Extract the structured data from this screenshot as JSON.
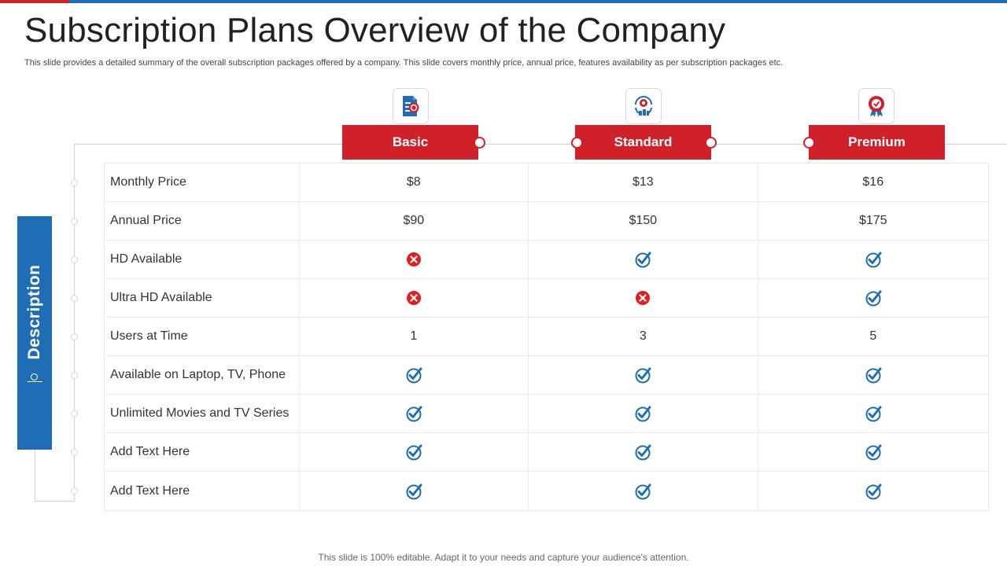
{
  "slide": {
    "title": "Subscription Plans Overview of the Company",
    "subtitle": "This slide provides a detailed summary of the overall subscription packages offered by a company. This slide covers monthly price, annual price, features availability as per subscription packages etc.",
    "side_label": "Description",
    "footer": "This slide is 100% editable. Adapt it to your needs and capture your audience's attention."
  },
  "colors": {
    "brand_red": "#d0202a",
    "brand_blue": "#1f6db5",
    "check_blue": "#1f6db5",
    "cross_red": "#e02020"
  },
  "plans": [
    {
      "name": "Basic",
      "icon": "document-badge-icon"
    },
    {
      "name": "Standard",
      "icon": "award-building-icon"
    },
    {
      "name": "Premium",
      "icon": "ribbon-badge-icon"
    }
  ],
  "rows": [
    {
      "label": "Monthly Price",
      "values": [
        {
          "text": "$8"
        },
        {
          "text": "$13"
        },
        {
          "text": "$16"
        }
      ]
    },
    {
      "label": "Annual Price",
      "values": [
        {
          "text": "$90"
        },
        {
          "text": "$150"
        },
        {
          "text": "$175"
        }
      ]
    },
    {
      "label": "HD Available",
      "values": [
        {
          "icon": "cross"
        },
        {
          "icon": "check"
        },
        {
          "icon": "check"
        }
      ]
    },
    {
      "label": "Ultra HD Available",
      "values": [
        {
          "icon": "cross"
        },
        {
          "icon": "cross"
        },
        {
          "icon": "check"
        }
      ]
    },
    {
      "label": "Users at Time",
      "values": [
        {
          "text": "1"
        },
        {
          "text": "3"
        },
        {
          "text": "5"
        }
      ]
    },
    {
      "label": "Available on Laptop, TV, Phone",
      "values": [
        {
          "icon": "check"
        },
        {
          "icon": "check"
        },
        {
          "icon": "check"
        }
      ]
    },
    {
      "label": "Unlimited Movies and TV Series",
      "values": [
        {
          "icon": "check"
        },
        {
          "icon": "check"
        },
        {
          "icon": "check"
        }
      ]
    },
    {
      "label": "Add Text Here",
      "values": [
        {
          "icon": "check"
        },
        {
          "icon": "check"
        },
        {
          "icon": "check"
        }
      ]
    },
    {
      "label": "Add Text Here",
      "values": [
        {
          "icon": "check"
        },
        {
          "icon": "check"
        },
        {
          "icon": "check"
        }
      ]
    }
  ]
}
